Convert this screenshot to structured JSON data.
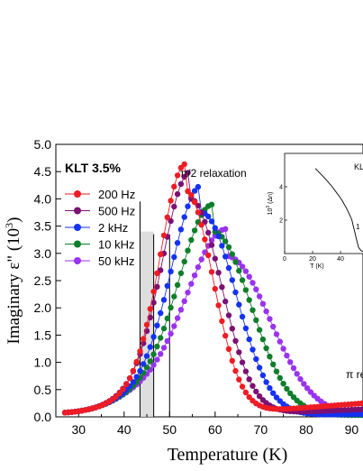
{
  "chart_data": [
    {
      "type": "scatter",
      "title": "",
      "xlabel": "Temperature (K)",
      "ylabel": "Imaginary ε\" (10",
      "ylabel_sup": "3",
      "ylabel_end": ")",
      "xlim": [
        25,
        92.5
      ],
      "ylim": [
        0.0,
        5.0
      ],
      "xticks": [
        30,
        40,
        50,
        60,
        70,
        80,
        90
      ],
      "yticks": [
        0.0,
        0.5,
        1.0,
        1.5,
        2.0,
        2.5,
        3.0,
        3.5,
        4.0,
        4.5,
        5.0
      ],
      "ytick_labels": [
        "0.0",
        "0.5",
        "1.0",
        "1.5",
        "2.0",
        "2.5",
        "3.0",
        "3.5",
        "4.0",
        "4.5",
        "5.0"
      ],
      "legend_title": "KLT 3.5%",
      "legend_position": "top-left",
      "annotations": [
        {
          "text": "π/2 relaxation",
          "x": 60.5,
          "y": 4.5
        },
        {
          "text": "π re",
          "x": 87.5,
          "y": 0.75
        }
      ],
      "marked_temperatures": [
        43.5,
        46.5,
        50
      ],
      "series": [
        {
          "name": "200 Hz",
          "color": "#ee1c24",
          "peak_T": 53.5,
          "peak_value": 4.15,
          "width_low": 5.5,
          "width_high": 6.0,
          "tail_end": 0.25
        },
        {
          "name": "500 Hz",
          "color": "#7b1173",
          "peak_T": 54.5,
          "peak_value": 4.0,
          "width_low": 6.0,
          "width_high": 6.8,
          "tail_end": 0.14
        },
        {
          "name": "2 kHz",
          "color": "#1432f0",
          "peak_T": 57.0,
          "peak_value": 3.75,
          "width_low": 6.5,
          "width_high": 7.5,
          "tail_end": 0.05
        },
        {
          "name": "10 kHz",
          "color": "#0e7e2a",
          "peak_T": 59.5,
          "peak_value": 3.4,
          "width_low": 7.3,
          "width_high": 8.3,
          "tail_end": 0.03
        },
        {
          "name": "50 kHz",
          "color": "#9933ee",
          "peak_T": 62.5,
          "peak_value": 2.95,
          "width_low": 8.5,
          "width_high": 9.5,
          "tail_end": 0.02
        }
      ]
    },
    {
      "type": "line",
      "title": "KL",
      "xlabel": "T (K)",
      "ylabel": "10",
      "ylabel_sup": "3",
      "ylabel_end": " (Δn)",
      "xlim": [
        0,
        60
      ],
      "ylim": [
        0,
        6
      ],
      "xticks": [
        0,
        20,
        40
      ],
      "yticks": [
        2,
        4
      ],
      "annotation": "1",
      "series": [
        {
          "name": "",
          "x": [
            22,
            26,
            30,
            34,
            38,
            41,
            44,
            46,
            48,
            49,
            50,
            51,
            52,
            53,
            55,
            58
          ],
          "y": [
            5.1,
            4.75,
            4.4,
            4.0,
            3.55,
            3.2,
            2.75,
            2.4,
            2.05,
            1.7,
            1.35,
            1.0,
            0.65,
            0.35,
            0.15,
            0.08
          ]
        }
      ]
    }
  ]
}
